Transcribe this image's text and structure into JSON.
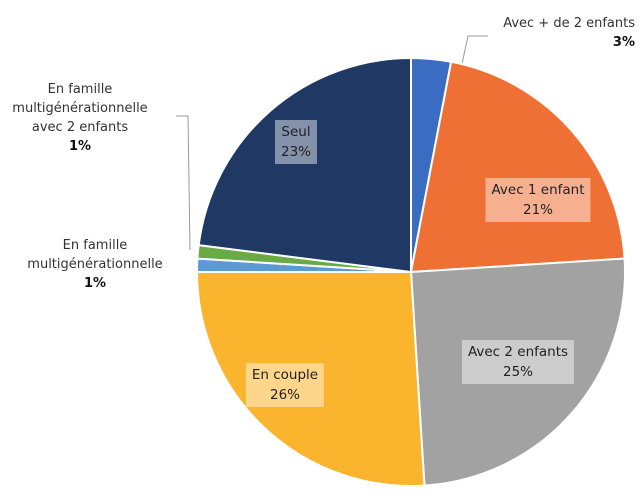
{
  "chart_data": {
    "type": "pie",
    "categories": [
      "Avec + de 2 enfants",
      "Avec 1 enfant",
      "Avec 2 enfants",
      "En couple",
      "En famille multigénérationnelle",
      "En famille multigénérationnelle avec 2 enfants",
      "Seul"
    ],
    "values": [
      3,
      21,
      25,
      26,
      1,
      1,
      23
    ],
    "value_labels": [
      "3%",
      "21%",
      "25%",
      "26%",
      "1%",
      "1%",
      "23%"
    ],
    "colors": [
      "#3a6cc2",
      "#ee7034",
      "#a2a2a2",
      "#fbb42e",
      "#5b9bd5",
      "#6aaa44",
      "#1f3864"
    ]
  }
}
